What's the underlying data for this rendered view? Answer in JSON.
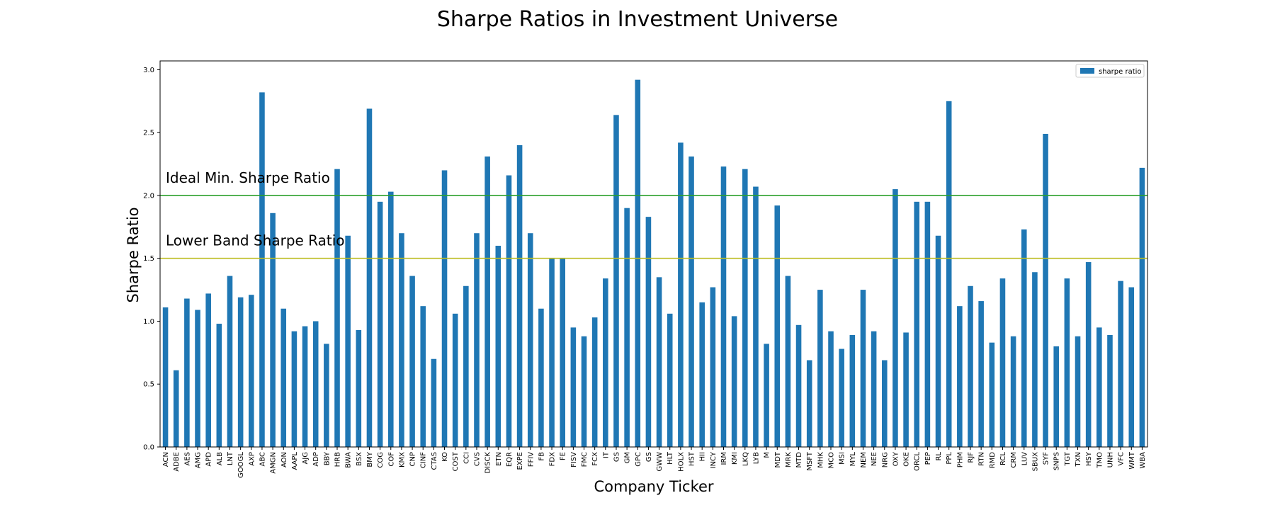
{
  "chart_data": {
    "type": "bar",
    "title": "Sharpe Ratios in Investment Universe",
    "xlabel": "Company Ticker",
    "ylabel": "Sharpe Ratio",
    "ylim": [
      0,
      3.07
    ],
    "yticks": [
      "0.0",
      "0.5",
      "1.0",
      "1.5",
      "2.0",
      "2.5",
      "3.0"
    ],
    "legend": {
      "placement": "top-right",
      "label": "sharpe ratio"
    },
    "grid": false,
    "colors": {
      "bar": "#1f77b4",
      "ideal_line": "#2ca02c",
      "lower_line": "#bcbd22"
    },
    "reference_lines": [
      {
        "label": "Ideal Min. Sharpe Ratio",
        "value": 2.0
      },
      {
        "label": "Lower Band Sharpe Ratio",
        "value": 1.5
      }
    ],
    "categories": [
      "ACN",
      "ADBE",
      "AES",
      "AMG",
      "APD",
      "ALB",
      "LNT",
      "GOOGL",
      "AXP",
      "ABC",
      "AMGN",
      "AON",
      "AAPL",
      "AJG",
      "ADP",
      "BBY",
      "HRB",
      "BWA",
      "BSX",
      "BMY",
      "COG",
      "COF",
      "KMX",
      "CNP",
      "CINF",
      "CTAS",
      "KO",
      "COST",
      "CCI",
      "CVS",
      "DISCK",
      "ETN",
      "EQR",
      "EXPE",
      "FFIV",
      "FB",
      "FDX",
      "FE",
      "FISV",
      "FMC",
      "FCX",
      "IT",
      "GS",
      "GM",
      "GPC",
      "GS",
      "GWW",
      "HLT",
      "HOLX",
      "HST",
      "HII",
      "INCY",
      "IRM",
      "KMI",
      "LKQ",
      "LYB",
      "M",
      "MDT",
      "MRK",
      "MTD",
      "MSFT",
      "MHK",
      "MCO",
      "MSI",
      "MYL",
      "NEM",
      "NEE",
      "NRG",
      "OXY",
      "OKE",
      "ORCL",
      "PEP",
      "RL",
      "PPL",
      "PHM",
      "RJF",
      "RTN",
      "RMD",
      "RCL",
      "CRM",
      "LUV",
      "SBUX",
      "SYF",
      "SNPS",
      "TGT",
      "TXN",
      "HSY",
      "TMO",
      "UNH",
      "VFC",
      "WMT",
      "WBA"
    ],
    "values": [
      1.11,
      0.61,
      1.18,
      1.09,
      1.22,
      0.98,
      1.36,
      1.19,
      1.21,
      2.82,
      1.86,
      1.1,
      0.92,
      0.96,
      1.0,
      0.82,
      2.21,
      1.68,
      0.93,
      2.69,
      1.95,
      2.03,
      1.7,
      1.36,
      1.12,
      0.7,
      2.2,
      1.06,
      1.28,
      1.7,
      2.31,
      1.6,
      2.16,
      2.4,
      1.7,
      1.1,
      1.5,
      1.5,
      0.95,
      0.88,
      1.03,
      1.34,
      2.64,
      1.9,
      2.92,
      1.83,
      1.35,
      1.06,
      2.42,
      2.31,
      1.15,
      1.27,
      2.23,
      1.04,
      2.21,
      2.07,
      0.82,
      1.92,
      1.36,
      0.97,
      0.69,
      1.25,
      0.92,
      0.78,
      0.89,
      1.25,
      0.92,
      0.69,
      2.05,
      0.91,
      1.95,
      1.95,
      1.68,
      2.75,
      1.12,
      1.28,
      1.16,
      0.83,
      1.34,
      0.88,
      1.73,
      1.39,
      2.49,
      0.8,
      1.34,
      0.88,
      1.47,
      0.95,
      0.89,
      1.32,
      1.27,
      2.22
    ]
  }
}
